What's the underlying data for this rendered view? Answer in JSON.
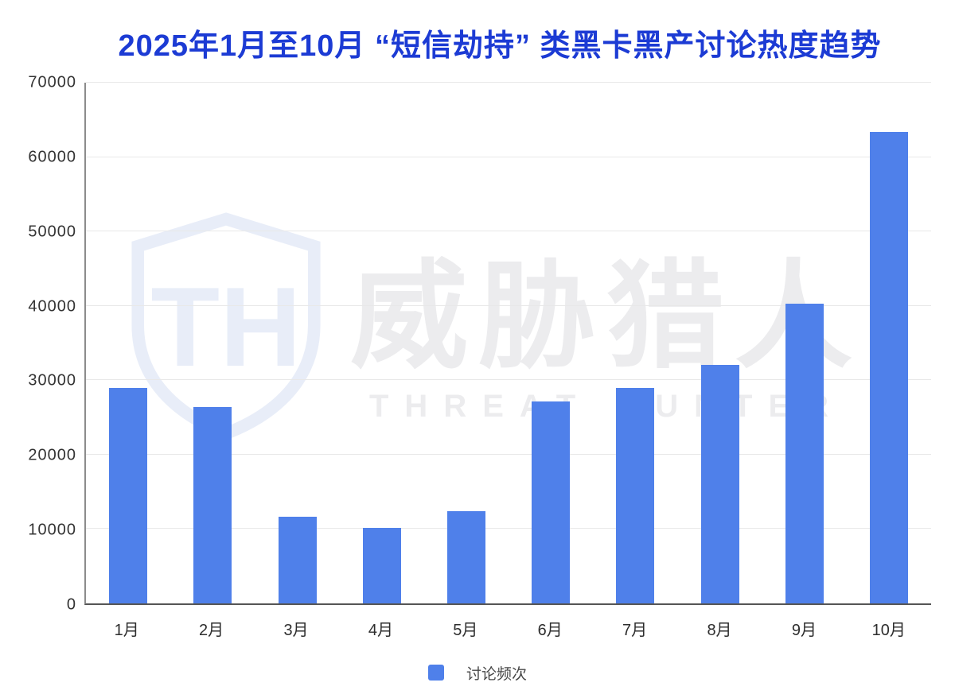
{
  "title": "2025年1月至10月 “短信劫持” 类黑卡黑产讨论热度趋势",
  "legend": {
    "label": "讨论频次"
  },
  "watermark": {
    "monogram": "TH",
    "cn_text": "威胁猎人",
    "en_text": "THREAT HUNTER"
  },
  "colors": {
    "bar": "#4f80ea",
    "title": "#1c3bd4",
    "axis_label": "#333333",
    "gridline": "#e8e8e8",
    "y_axis_line": "#8c8c8c",
    "x_axis_line": "#555555",
    "watermark_gray": "#ececee",
    "watermark_blue": "#e8edf8",
    "legend_text": "#474747"
  },
  "chart_data": {
    "type": "bar",
    "title": "2025年1月至10月 “短信劫持” 类黑卡黑产讨论热度趋势",
    "categories": [
      "1月",
      "2月",
      "3月",
      "4月",
      "5月",
      "6月",
      "7月",
      "8月",
      "9月",
      "10月"
    ],
    "series": [
      {
        "name": "讨论频次",
        "values": [
          29000,
          26400,
          11700,
          10200,
          12400,
          27200,
          29000,
          32100,
          40300,
          63400
        ]
      }
    ],
    "xlabel": "",
    "ylabel": "",
    "ylim": [
      0,
      70000
    ],
    "yticks": [
      0,
      10000,
      20000,
      30000,
      40000,
      50000,
      60000,
      70000
    ],
    "grid": true,
    "legend_position": "bottom"
  }
}
